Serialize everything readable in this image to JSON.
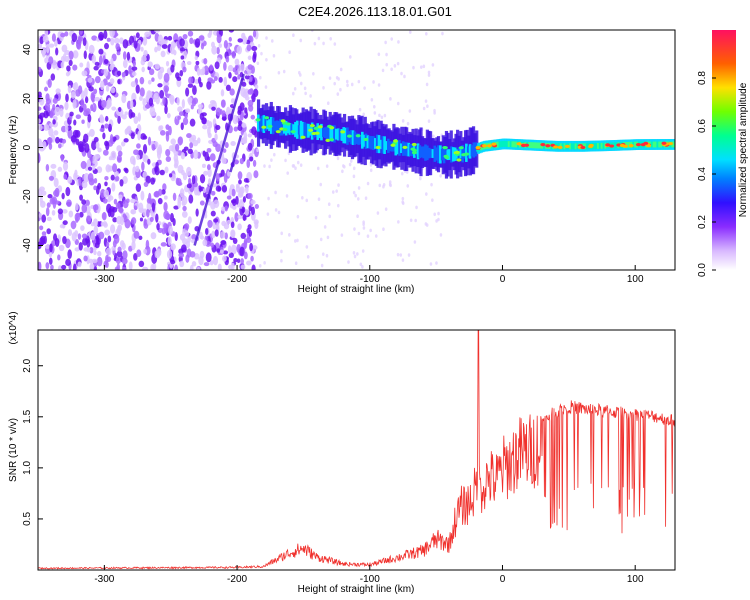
{
  "title": "C2E4.2026.113.18.01.G01",
  "colors": {
    "snr_line": "#f0302c",
    "spectrogram_scatter": "#7a1cff",
    "colormap": [
      "#ffffff",
      "#e4cfff",
      "#b070ff",
      "#7a1cff",
      "#3b1cff",
      "#1060ff",
      "#00c8ff",
      "#00ff9a",
      "#9cff00",
      "#ffb000",
      "#ff4000",
      "#ff2060"
    ]
  },
  "chart_data": [
    {
      "type": "heatmap",
      "title": "C2E4.2026.113.18.01.G01",
      "xlabel": "Height of straight line (km)",
      "ylabel": "Frequency (Hz)",
      "xlim": [
        -350,
        130
      ],
      "ylim": [
        -50,
        48
      ],
      "x_ticks": [
        -300,
        -200,
        -100,
        0,
        100
      ],
      "y_ticks": [
        -40,
        -20,
        0,
        20,
        40
      ],
      "colorbar": {
        "label": "Normalized spectral amplitude",
        "range": [
          0,
          1
        ],
        "ticks": [
          "0.0",
          "0.2",
          "0.4",
          "0.6",
          "0.8"
        ]
      },
      "ridge": {
        "x": [
          -185,
          -160,
          -140,
          -120,
          -100,
          -80,
          -60,
          -45,
          -30,
          -15,
          0,
          20,
          40,
          60,
          80,
          100,
          130
        ],
        "y": [
          10,
          7.5,
          6.5,
          5,
          2,
          0,
          -2,
          -3,
          -2.5,
          0.5,
          1.5,
          1,
          0.5,
          0.5,
          0.8,
          1.2,
          1.3
        ]
      },
      "grid": false
    },
    {
      "type": "line",
      "xlabel": "Height of straight line (km)",
      "ylabel": "SNR (10 * v/v)",
      "y_multiplier": "(x10^4)",
      "xlim": [
        -350,
        130
      ],
      "ylim": [
        0,
        2.35
      ],
      "x_ticks": [
        -300,
        -200,
        -100,
        0,
        100
      ],
      "y_ticks": [
        "0.5",
        "1.0",
        "1.5",
        "2.0"
      ],
      "y_tick_values": [
        0.5,
        1.0,
        1.5,
        2.0
      ],
      "envelope_x": [
        -350,
        -200,
        -180,
        -160,
        -150,
        -140,
        -120,
        -100,
        -80,
        -60,
        -50,
        -40,
        -35,
        -30,
        -25,
        -20,
        -15,
        -10,
        -5,
        0,
        5,
        10,
        15,
        20,
        25,
        30,
        35,
        40,
        50,
        60,
        80,
        100,
        115,
        130
      ],
      "envelope_y": [
        0.02,
        0.03,
        0.04,
        0.2,
        0.25,
        0.15,
        0.07,
        0.06,
        0.14,
        0.22,
        0.35,
        0.3,
        0.6,
        0.75,
        0.8,
        0.95,
        1.0,
        1.1,
        1.05,
        1.2,
        1.25,
        1.35,
        1.4,
        1.4,
        1.45,
        1.5,
        1.55,
        1.6,
        1.65,
        1.63,
        1.6,
        1.57,
        1.55,
        1.5
      ],
      "spike": {
        "x": -18,
        "y": 2.35
      },
      "grid": false
    }
  ]
}
